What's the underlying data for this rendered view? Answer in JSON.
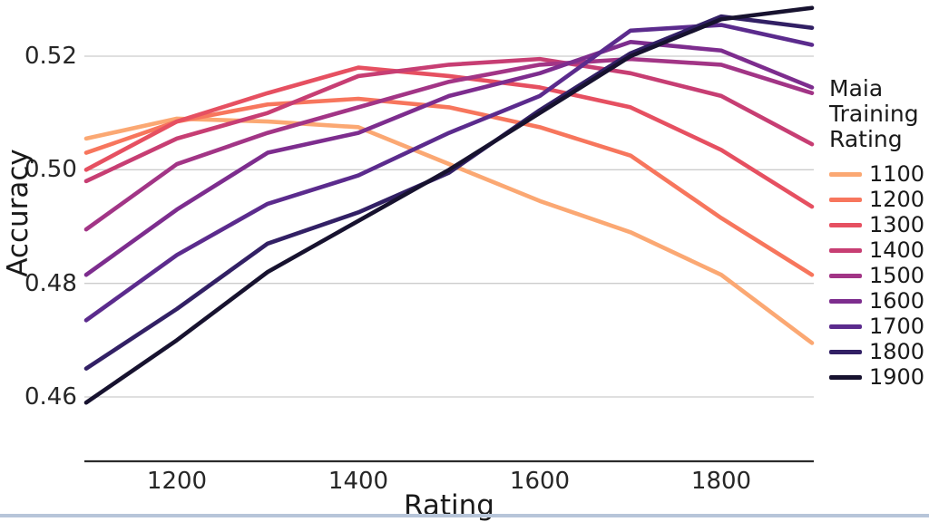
{
  "page": {
    "background": "#ffffff",
    "bottom_bar_color": "#b7c5d9"
  },
  "chart_data": {
    "type": "line",
    "title": "",
    "xlabel": "Rating",
    "ylabel": "Accuracy",
    "legend_title": "Maia Training Rating",
    "legend_position": "right",
    "grid": true,
    "gridline_color": "#cccccc",
    "axis_spine_color": "#2b2b2b",
    "xlim": [
      1100,
      1900
    ],
    "ylim": [
      0.449,
      0.53
    ],
    "x_ticks": [
      1200,
      1400,
      1600,
      1800
    ],
    "x_tick_labels": [
      "1200",
      "1400",
      "1600",
      "1800"
    ],
    "y_ticks": [
      0.46,
      0.48,
      0.5,
      0.52
    ],
    "y_tick_labels": [
      "0.46",
      "0.48",
      "0.50",
      "0.52"
    ],
    "x": [
      1100,
      1200,
      1300,
      1400,
      1500,
      1600,
      1700,
      1800,
      1900
    ],
    "series": [
      {
        "name": "1100",
        "color": "#fba873",
        "values": [
          0.5055,
          0.509,
          0.5085,
          0.5075,
          0.501,
          0.4945,
          0.489,
          0.4815,
          0.4695
        ]
      },
      {
        "name": "1200",
        "color": "#f7765d",
        "values": [
          0.503,
          0.5085,
          0.5115,
          0.5125,
          0.511,
          0.5075,
          0.5025,
          0.4915,
          0.4815
        ]
      },
      {
        "name": "1300",
        "color": "#e65061",
        "values": [
          0.5,
          0.5085,
          0.5135,
          0.518,
          0.5165,
          0.5145,
          0.511,
          0.5035,
          0.4935
        ]
      },
      {
        "name": "1400",
        "color": "#c73e73",
        "values": [
          0.498,
          0.5055,
          0.51,
          0.5165,
          0.5185,
          0.5195,
          0.517,
          0.513,
          0.5045
        ]
      },
      {
        "name": "1500",
        "color": "#a23586",
        "values": [
          0.4895,
          0.501,
          0.5065,
          0.511,
          0.5155,
          0.5185,
          0.5195,
          0.5185,
          0.5135
        ]
      },
      {
        "name": "1600",
        "color": "#7d2d8e",
        "values": [
          0.4815,
          0.493,
          0.503,
          0.5065,
          0.513,
          0.517,
          0.5225,
          0.521,
          0.5145
        ]
      },
      {
        "name": "1700",
        "color": "#5b2b8d",
        "values": [
          0.4735,
          0.485,
          0.494,
          0.499,
          0.5065,
          0.513,
          0.5245,
          0.5255,
          0.522
        ]
      },
      {
        "name": "1800",
        "color": "#322065",
        "values": [
          0.465,
          0.4755,
          0.487,
          0.4925,
          0.4995,
          0.5105,
          0.5205,
          0.527,
          0.525
        ]
      },
      {
        "name": "1900",
        "color": "#17122f",
        "values": [
          0.459,
          0.47,
          0.482,
          0.491,
          0.5,
          0.51,
          0.52,
          0.5265,
          0.5285
        ]
      }
    ]
  }
}
